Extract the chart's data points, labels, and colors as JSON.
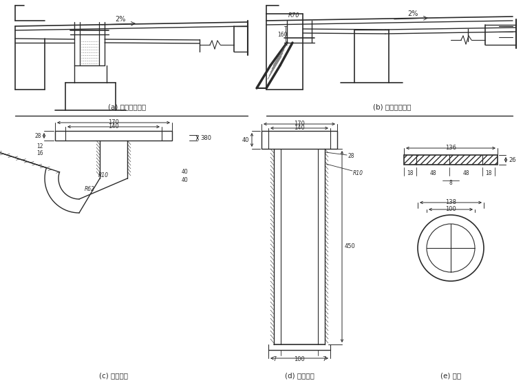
{
  "bg_color": "#ffffff",
  "line_color": "#2a2a2a",
  "labels": {
    "a": "(a) 直管安装示意",
    "b": "(b) 弯管安装示意",
    "c": "(c) 弯泄水管",
    "d": "(d) 直泄水管",
    "e": "(e) 栅盖"
  }
}
